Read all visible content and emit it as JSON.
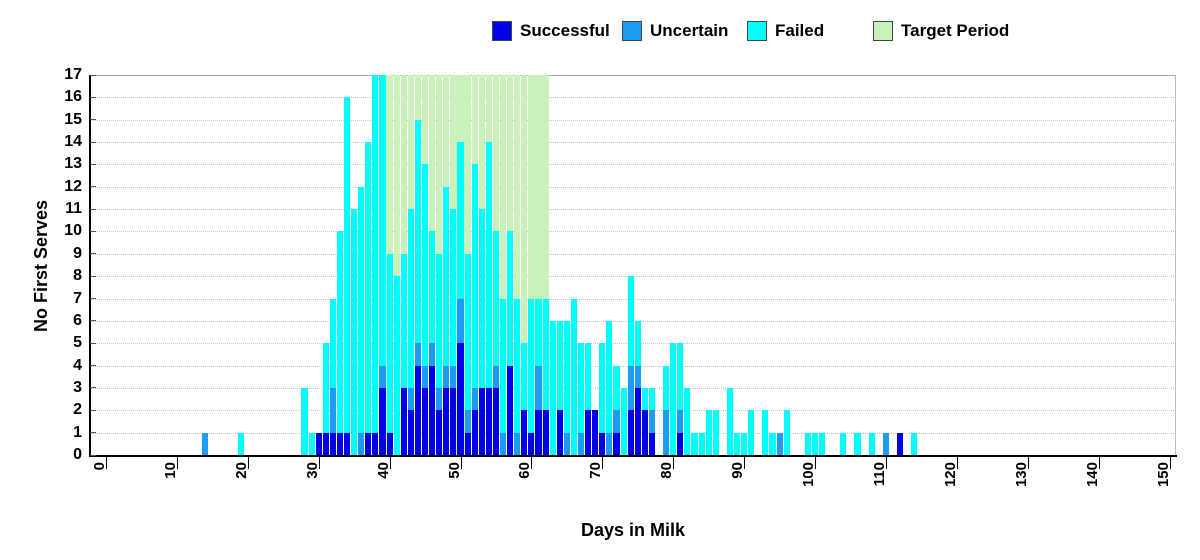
{
  "y_axis_title": "No First Serves",
  "x_axis_title": "Days in Milk",
  "legend": {
    "items": [
      {
        "label": "Successful",
        "color": "#0000E8"
      },
      {
        "label": "Uncertain",
        "color": "#1E9BF5"
      },
      {
        "label": "Failed",
        "color": "#00FFFF"
      },
      {
        "label": "Target Period",
        "color": "#C9F1BA"
      }
    ]
  },
  "chart_data": {
    "type": "bar",
    "stacked": true,
    "title": "",
    "xlabel": "Days in Milk",
    "ylabel": "No First Serves",
    "xlim": [
      -2.25,
      151
    ],
    "ylim": [
      0,
      17
    ],
    "grid": "horizontal-dotted",
    "legend_position": "top",
    "x_ticks": [
      0,
      10,
      20,
      30,
      40,
      50,
      60,
      70,
      80,
      90,
      100,
      110,
      120,
      130,
      140,
      150
    ],
    "y_ticks": [
      0,
      1,
      2,
      3,
      4,
      5,
      6,
      7,
      8,
      9,
      10,
      11,
      12,
      13,
      14,
      15,
      16,
      17
    ],
    "series_order": [
      "successful",
      "uncertain",
      "failed"
    ],
    "series_colors": {
      "successful": "#0000E8",
      "uncertain": "#1E9BF5",
      "failed": "#00FFFF"
    },
    "target_period": {
      "label": "Target Period",
      "start_day": 40,
      "end_day": 62,
      "top": 17,
      "color": "#C9F1BA"
    },
    "bars": [
      {
        "day": 14,
        "successful": 0,
        "uncertain": 1,
        "failed": 0
      },
      {
        "day": 19,
        "successful": 0,
        "uncertain": 0,
        "failed": 1
      },
      {
        "day": 28,
        "successful": 0,
        "uncertain": 0,
        "failed": 3
      },
      {
        "day": 29,
        "successful": 0,
        "uncertain": 0,
        "failed": 1
      },
      {
        "day": 30,
        "successful": 1,
        "uncertain": 0,
        "failed": 0
      },
      {
        "day": 31,
        "successful": 1,
        "uncertain": 0,
        "failed": 4
      },
      {
        "day": 32,
        "successful": 1,
        "uncertain": 2,
        "failed": 4
      },
      {
        "day": 33,
        "successful": 1,
        "uncertain": 0,
        "failed": 9
      },
      {
        "day": 34,
        "successful": 1,
        "uncertain": 0,
        "failed": 15
      },
      {
        "day": 35,
        "successful": 0,
        "uncertain": 0,
        "failed": 11
      },
      {
        "day": 36,
        "successful": 0,
        "uncertain": 1,
        "failed": 11
      },
      {
        "day": 37,
        "successful": 1,
        "uncertain": 0,
        "failed": 13
      },
      {
        "day": 38,
        "successful": 1,
        "uncertain": 0,
        "failed": 16
      },
      {
        "day": 39,
        "successful": 3,
        "uncertain": 1,
        "failed": 13
      },
      {
        "day": 40,
        "successful": 1,
        "uncertain": 0,
        "failed": 8
      },
      {
        "day": 41,
        "successful": 0,
        "uncertain": 0,
        "failed": 8
      },
      {
        "day": 42,
        "successful": 3,
        "uncertain": 0,
        "failed": 6
      },
      {
        "day": 43,
        "successful": 2,
        "uncertain": 1,
        "failed": 8
      },
      {
        "day": 44,
        "successful": 4,
        "uncertain": 1,
        "failed": 10
      },
      {
        "day": 45,
        "successful": 3,
        "uncertain": 1,
        "failed": 9
      },
      {
        "day": 46,
        "successful": 4,
        "uncertain": 1,
        "failed": 5
      },
      {
        "day": 47,
        "successful": 2,
        "uncertain": 1,
        "failed": 6
      },
      {
        "day": 48,
        "successful": 3,
        "uncertain": 1,
        "failed": 8
      },
      {
        "day": 49,
        "successful": 3,
        "uncertain": 1,
        "failed": 7
      },
      {
        "day": 50,
        "successful": 5,
        "uncertain": 2,
        "failed": 7
      },
      {
        "day": 51,
        "successful": 1,
        "uncertain": 1,
        "failed": 7
      },
      {
        "day": 52,
        "successful": 2,
        "uncertain": 1,
        "failed": 10
      },
      {
        "day": 53,
        "successful": 3,
        "uncertain": 0,
        "failed": 8
      },
      {
        "day": 54,
        "successful": 3,
        "uncertain": 0,
        "failed": 11
      },
      {
        "day": 55,
        "successful": 3,
        "uncertain": 1,
        "failed": 6
      },
      {
        "day": 56,
        "successful": 0,
        "uncertain": 1,
        "failed": 6
      },
      {
        "day": 57,
        "successful": 4,
        "uncertain": 0,
        "failed": 6
      },
      {
        "day": 58,
        "successful": 0,
        "uncertain": 1,
        "failed": 6
      },
      {
        "day": 59,
        "successful": 2,
        "uncertain": 0,
        "failed": 3
      },
      {
        "day": 60,
        "successful": 1,
        "uncertain": 0,
        "failed": 6
      },
      {
        "day": 61,
        "successful": 2,
        "uncertain": 2,
        "failed": 3
      },
      {
        "day": 62,
        "successful": 2,
        "uncertain": 0,
        "failed": 5
      },
      {
        "day": 63,
        "successful": 0,
        "uncertain": 0,
        "failed": 6
      },
      {
        "day": 64,
        "successful": 2,
        "uncertain": 0,
        "failed": 4
      },
      {
        "day": 65,
        "successful": 0,
        "uncertain": 1,
        "failed": 5
      },
      {
        "day": 66,
        "successful": 0,
        "uncertain": 0,
        "failed": 7
      },
      {
        "day": 67,
        "successful": 0,
        "uncertain": 1,
        "failed": 4
      },
      {
        "day": 68,
        "successful": 2,
        "uncertain": 0,
        "failed": 3
      },
      {
        "day": 69,
        "successful": 2,
        "uncertain": 0,
        "failed": 0
      },
      {
        "day": 70,
        "successful": 1,
        "uncertain": 0,
        "failed": 4
      },
      {
        "day": 71,
        "successful": 0,
        "uncertain": 1,
        "failed": 5
      },
      {
        "day": 72,
        "successful": 1,
        "uncertain": 1,
        "failed": 2
      },
      {
        "day": 73,
        "successful": 0,
        "uncertain": 0,
        "failed": 3
      },
      {
        "day": 74,
        "successful": 2,
        "uncertain": 2,
        "failed": 4
      },
      {
        "day": 75,
        "successful": 3,
        "uncertain": 1,
        "failed": 2
      },
      {
        "day": 76,
        "successful": 2,
        "uncertain": 0,
        "failed": 1
      },
      {
        "day": 77,
        "successful": 1,
        "uncertain": 1,
        "failed": 1
      },
      {
        "day": 79,
        "successful": 0,
        "uncertain": 2,
        "failed": 2
      },
      {
        "day": 80,
        "successful": 0,
        "uncertain": 0,
        "failed": 5
      },
      {
        "day": 81,
        "successful": 1,
        "uncertain": 1,
        "failed": 3
      },
      {
        "day": 82,
        "successful": 0,
        "uncertain": 0,
        "failed": 3
      },
      {
        "day": 83,
        "successful": 0,
        "uncertain": 0,
        "failed": 1
      },
      {
        "day": 84,
        "successful": 0,
        "uncertain": 0,
        "failed": 1
      },
      {
        "day": 85,
        "successful": 0,
        "uncertain": 0,
        "failed": 2
      },
      {
        "day": 86,
        "successful": 0,
        "uncertain": 0,
        "failed": 2
      },
      {
        "day": 88,
        "successful": 0,
        "uncertain": 0,
        "failed": 3
      },
      {
        "day": 89,
        "successful": 0,
        "uncertain": 0,
        "failed": 1
      },
      {
        "day": 90,
        "successful": 0,
        "uncertain": 0,
        "failed": 1
      },
      {
        "day": 91,
        "successful": 0,
        "uncertain": 0,
        "failed": 2
      },
      {
        "day": 93,
        "successful": 0,
        "uncertain": 0,
        "failed": 2
      },
      {
        "day": 94,
        "successful": 0,
        "uncertain": 0,
        "failed": 1
      },
      {
        "day": 95,
        "successful": 0,
        "uncertain": 1,
        "failed": 0
      },
      {
        "day": 96,
        "successful": 0,
        "uncertain": 0,
        "failed": 2
      },
      {
        "day": 99,
        "successful": 0,
        "uncertain": 0,
        "failed": 1
      },
      {
        "day": 100,
        "successful": 0,
        "uncertain": 0,
        "failed": 1
      },
      {
        "day": 101,
        "successful": 0,
        "uncertain": 0,
        "failed": 1
      },
      {
        "day": 104,
        "successful": 0,
        "uncertain": 0,
        "failed": 1
      },
      {
        "day": 106,
        "successful": 0,
        "uncertain": 0,
        "failed": 1
      },
      {
        "day": 108,
        "successful": 0,
        "uncertain": 0,
        "failed": 1
      },
      {
        "day": 110,
        "successful": 0,
        "uncertain": 1,
        "failed": 0
      },
      {
        "day": 112,
        "successful": 1,
        "uncertain": 0,
        "failed": 0
      },
      {
        "day": 114,
        "successful": 0,
        "uncertain": 0,
        "failed": 1
      }
    ]
  }
}
